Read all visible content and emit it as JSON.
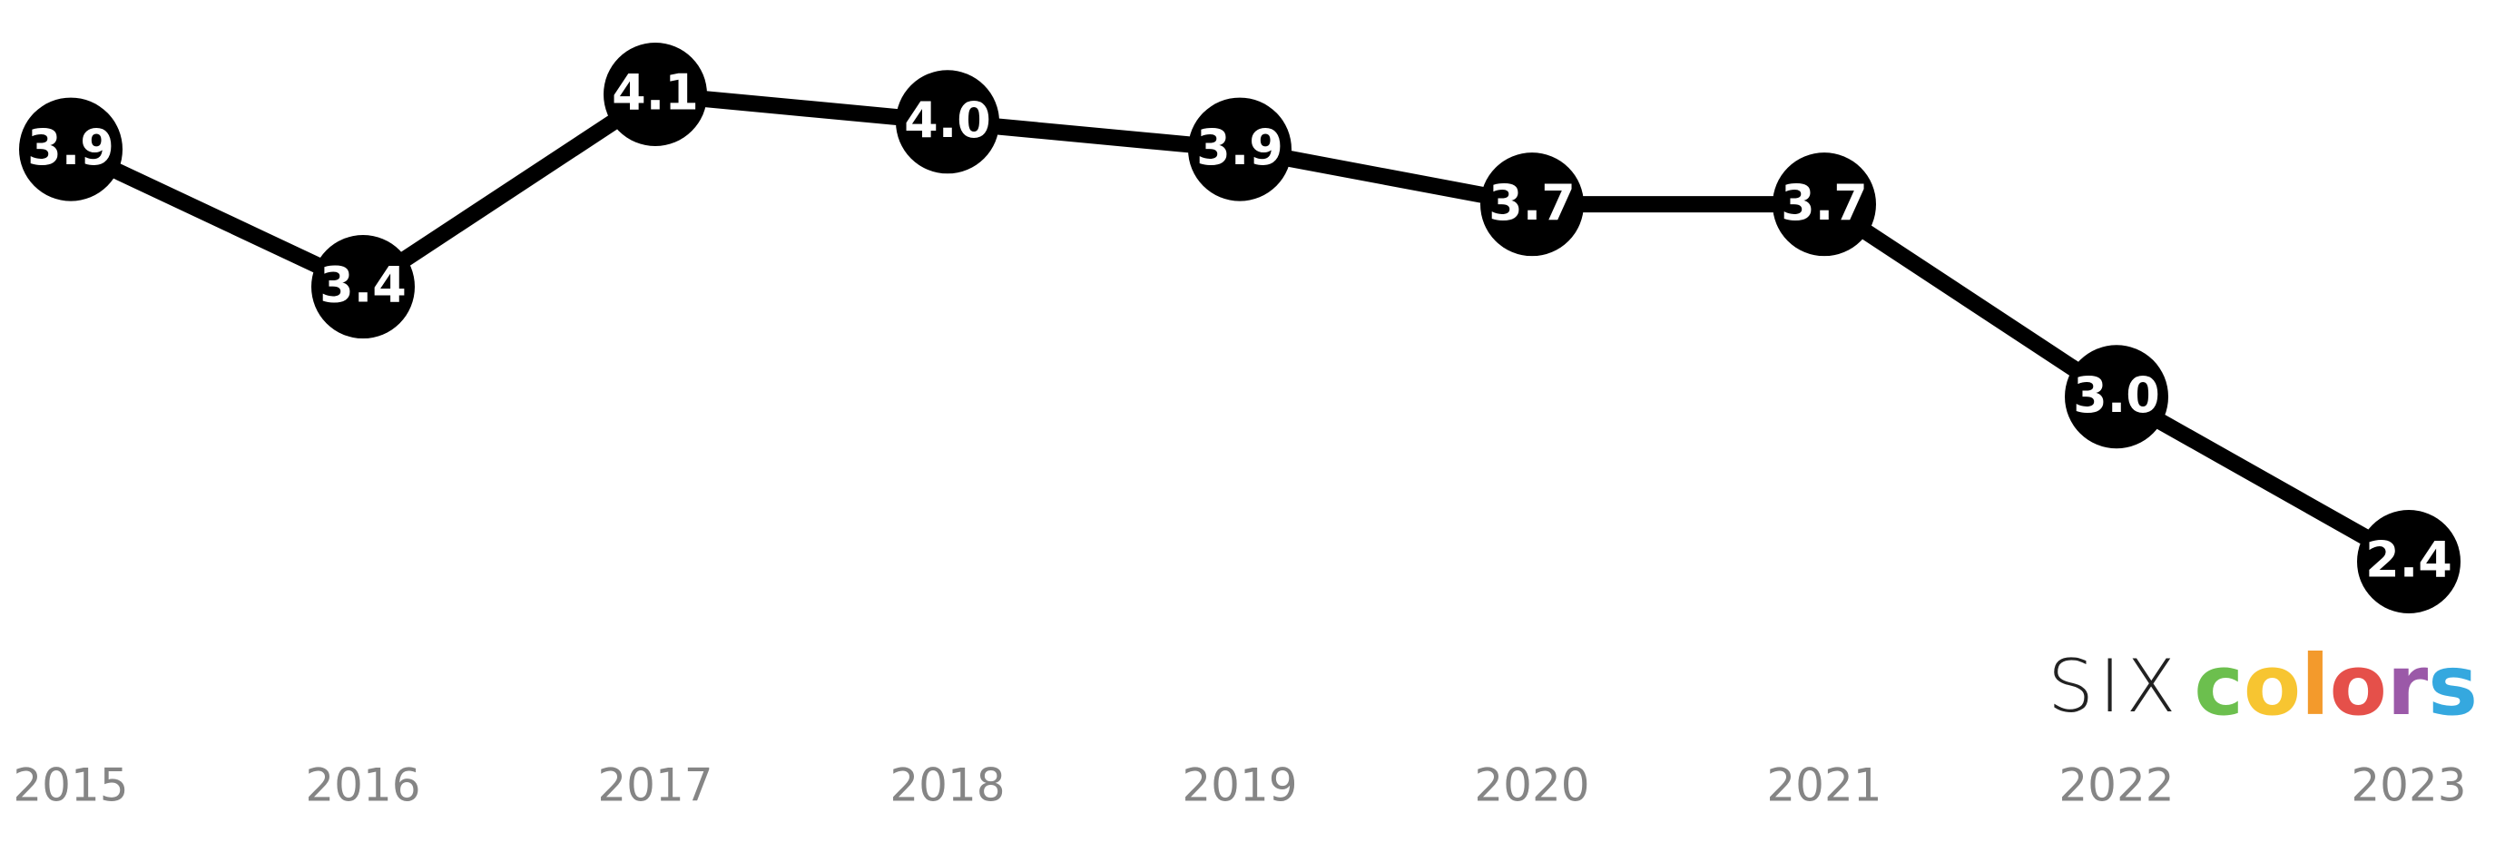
{
  "chart_data": {
    "type": "line",
    "categories": [
      "2015",
      "2016",
      "2017",
      "2018",
      "2019",
      "2020",
      "2021",
      "2022",
      "2023"
    ],
    "series": [
      {
        "color": "#000000",
        "values": [
          3.9,
          3.4,
          4.1,
          4.0,
          3.9,
          3.7,
          3.7,
          3.0,
          2.4
        ],
        "value_labels": [
          "3.9",
          "3.4",
          "4.1",
          "4.0",
          "3.9",
          "3.7",
          "3.7",
          "3.0",
          "2.4"
        ]
      }
    ],
    "grid": false
  },
  "logo": {
    "prefix": "SIX",
    "letters": [
      {
        "char": "c",
        "color": "#6cbf4e"
      },
      {
        "char": "o",
        "color": "#f7c531"
      },
      {
        "char": "l",
        "color": "#f39a2c"
      },
      {
        "char": "o",
        "color": "#e5504a"
      },
      {
        "char": "r",
        "color": "#9b59a8"
      },
      {
        "char": "s",
        "color": "#35a8df"
      }
    ]
  }
}
